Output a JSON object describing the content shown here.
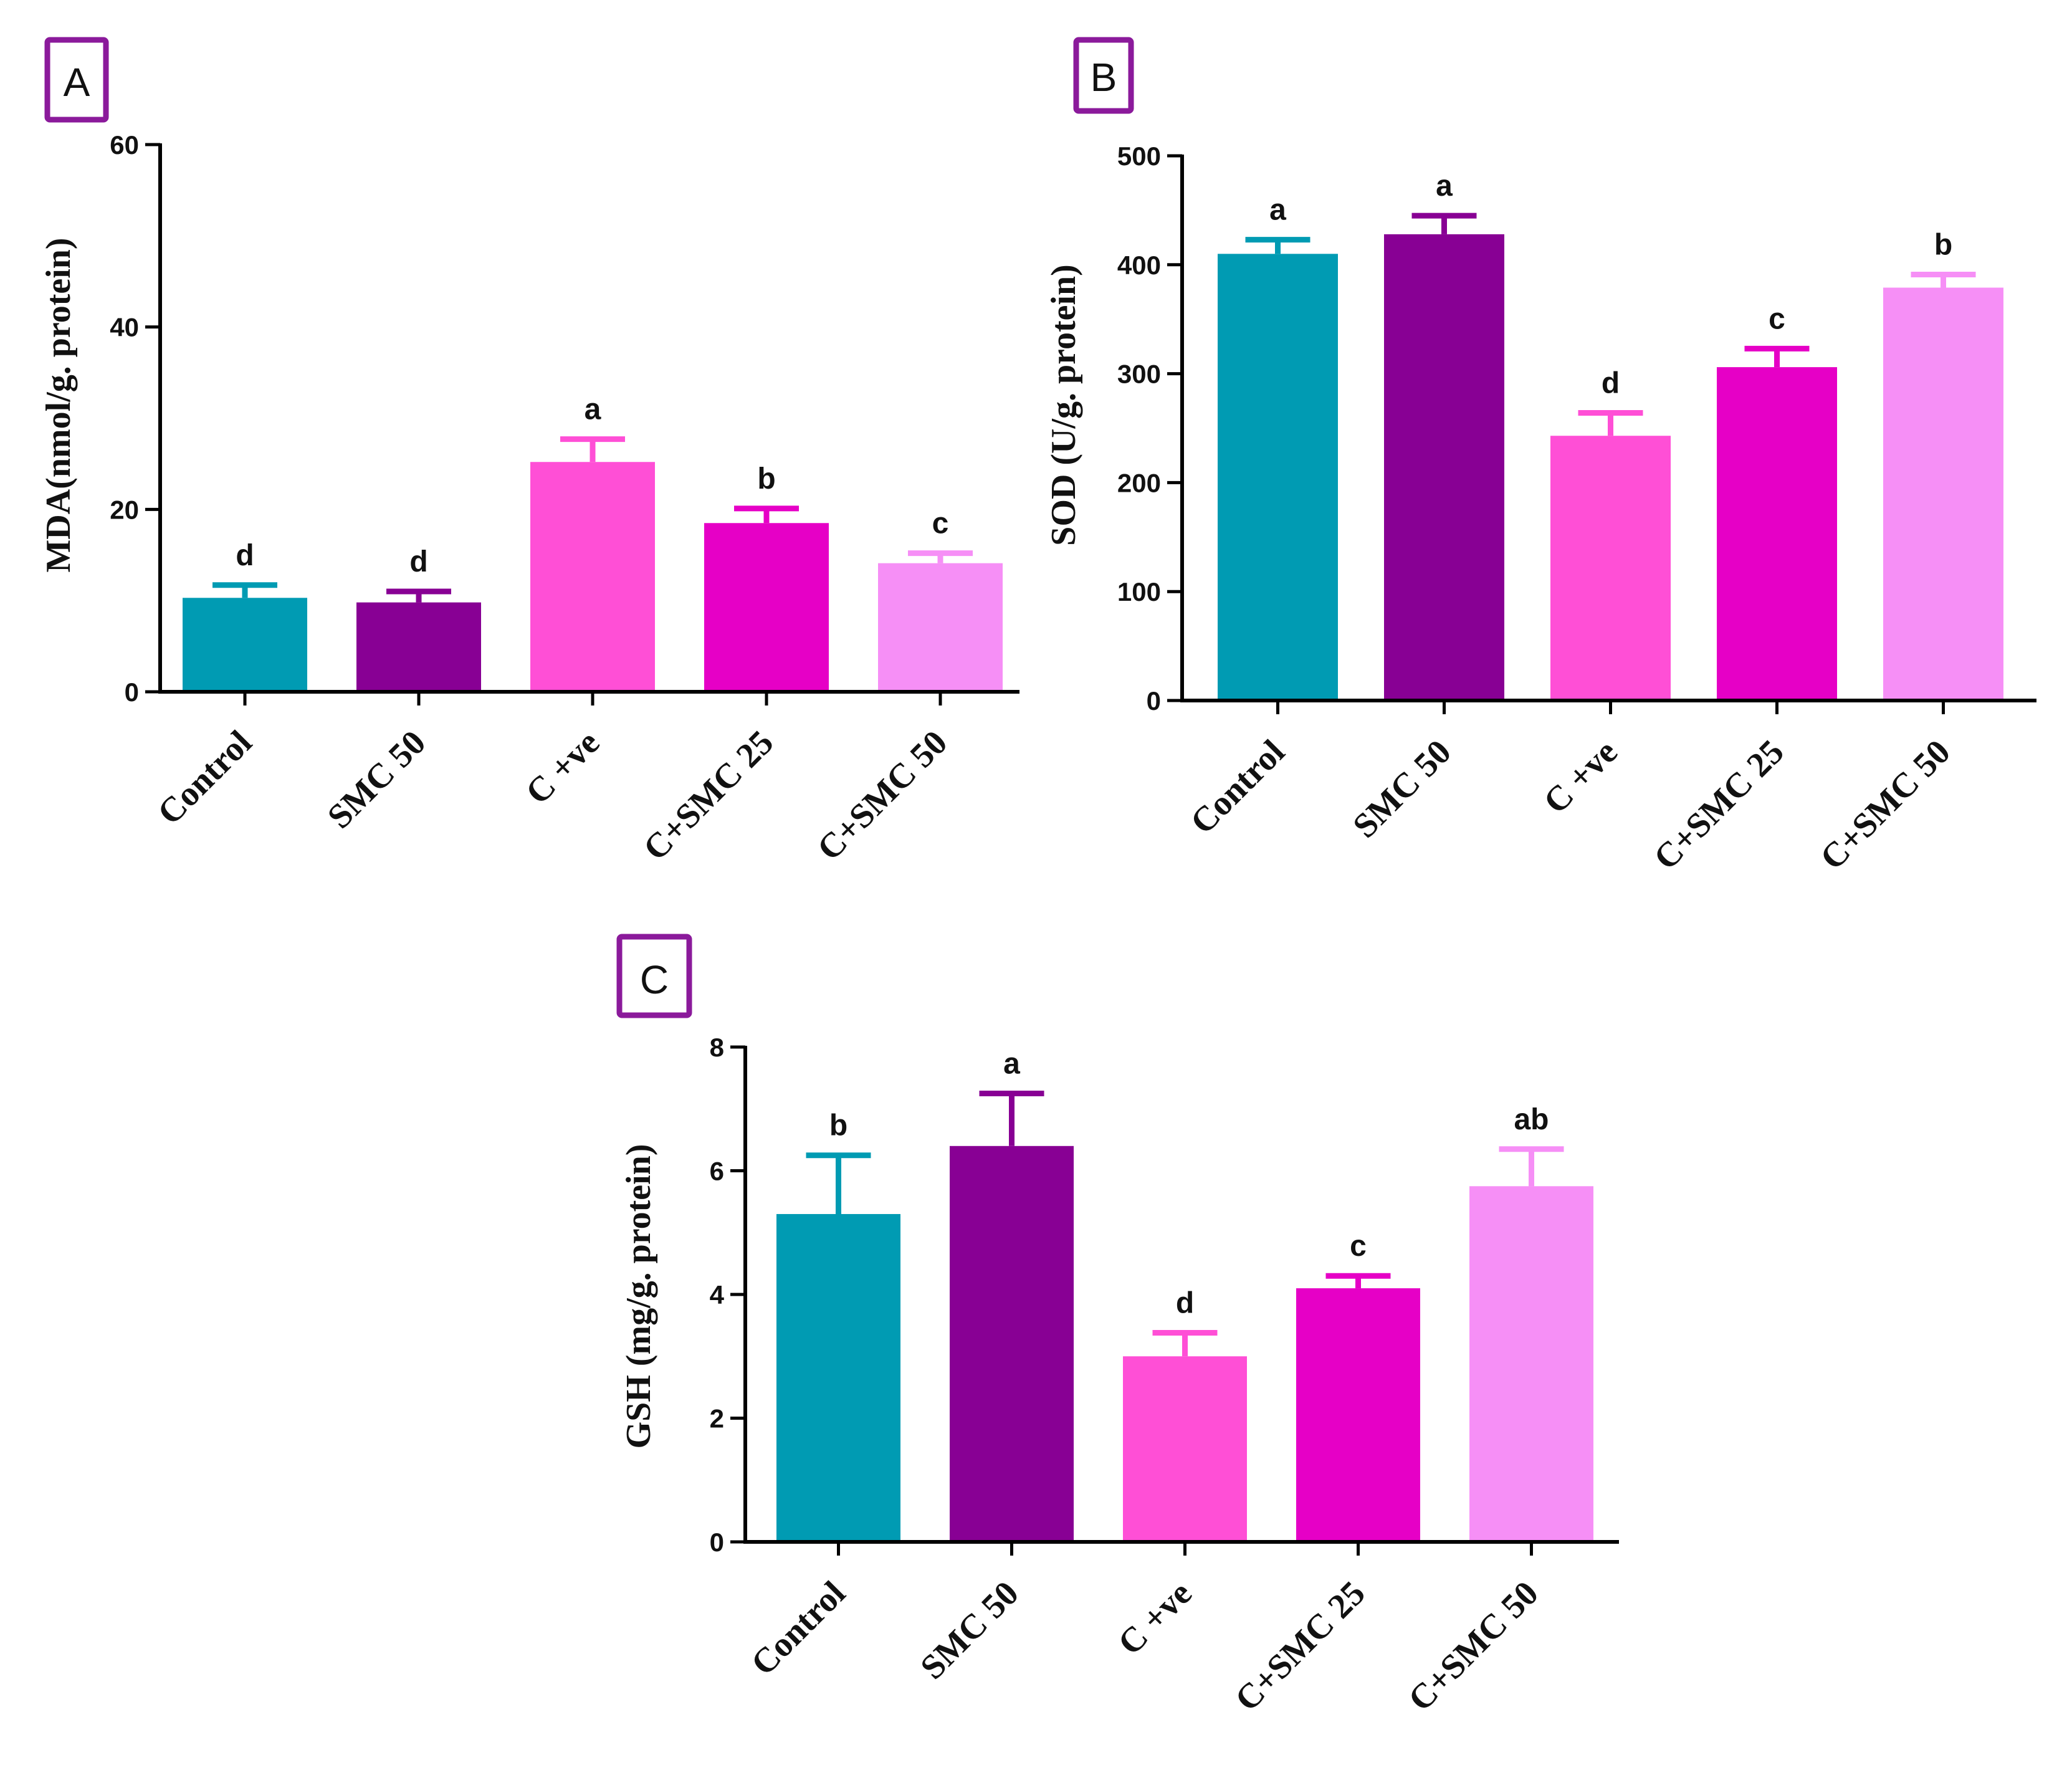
{
  "chart_data": [
    {
      "panel": "A",
      "type": "bar",
      "title": "",
      "xlabel": "",
      "ylabel": "MDA(nmol/g. protein)",
      "ylim": [
        0,
        60
      ],
      "yticks": [
        "0",
        "20",
        "40",
        "60"
      ],
      "grid": false,
      "categories": [
        "Control",
        "SMC 50",
        "C +ve",
        "C+SMC 25",
        "C+SMC 50"
      ],
      "values": [
        10.3,
        9.8,
        25.2,
        18.5,
        14.1
      ],
      "errors": [
        1.4,
        1.2,
        2.5,
        1.6,
        1.1
      ],
      "significance": [
        "d",
        "d",
        "a",
        "b",
        "c"
      ],
      "colors": [
        "#009bb3",
        "#880094",
        "#ff4fd6",
        "#e600c6",
        "#f68ff6"
      ]
    },
    {
      "panel": "B",
      "type": "bar",
      "title": "",
      "xlabel": "",
      "ylabel": "SOD (U/g. protein)",
      "ylim": [
        0,
        500
      ],
      "yticks": [
        "0",
        "100",
        "200",
        "300",
        "400",
        "500"
      ],
      "grid": false,
      "categories": [
        "Control",
        "SMC 50",
        "C +ve",
        "C+SMC 25",
        "C+SMC 50"
      ],
      "values": [
        410,
        428,
        243,
        306,
        379
      ],
      "errors": [
        13,
        17,
        21,
        17,
        12
      ],
      "significance": [
        "a",
        "a",
        "d",
        "c",
        "b"
      ],
      "colors": [
        "#009bb3",
        "#880094",
        "#ff4fd6",
        "#e600c6",
        "#f68ff6"
      ]
    },
    {
      "panel": "C",
      "type": "bar",
      "title": "",
      "xlabel": "",
      "ylabel": "GSH (mg/g. protein)",
      "ylim": [
        0,
        8
      ],
      "yticks": [
        "0",
        "2",
        "4",
        "6",
        "8"
      ],
      "grid": false,
      "categories": [
        "Control",
        "SMC 50",
        "C +ve",
        "C+SMC 25",
        "C+SMC 50"
      ],
      "values": [
        5.3,
        6.4,
        3.0,
        4.1,
        5.75
      ],
      "errors": [
        0.95,
        0.85,
        0.38,
        0.2,
        0.6
      ],
      "significance": [
        "b",
        "a",
        "d",
        "c",
        "ab"
      ],
      "colors": [
        "#009bb3",
        "#880094",
        "#ff4fd6",
        "#e600c6",
        "#f68ff6"
      ]
    }
  ]
}
